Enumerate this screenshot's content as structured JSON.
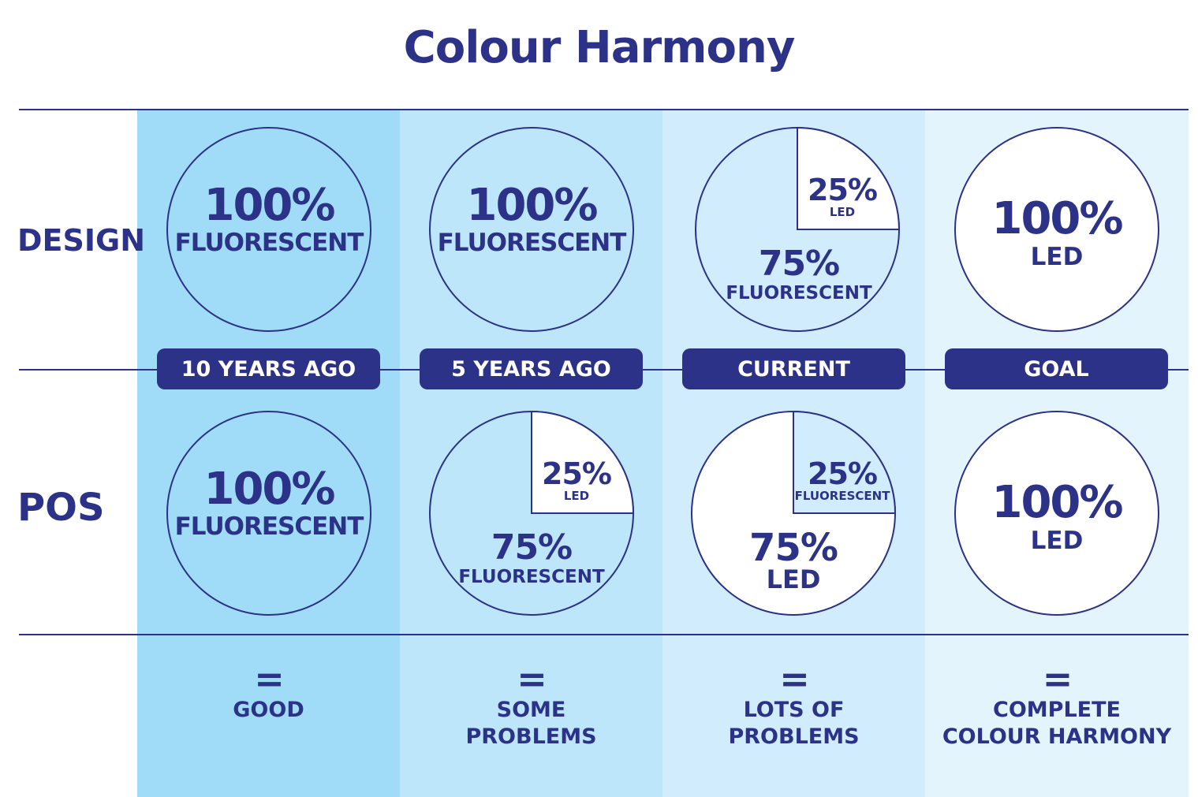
{
  "title": "Colour Harmony",
  "row_labels": {
    "design": "DESIGN",
    "pos": "POS"
  },
  "colors": {
    "dark_blue": "#2b3287",
    "column_1_bg": "#a0dcf7",
    "column_2_bg": "#bde6fa",
    "column_3_bg": "#d1ecfc",
    "column_4_bg": "#e4f4fd",
    "white": "#ffffff"
  },
  "columns": [
    {
      "label": "10 YEARS AGO",
      "design": {
        "pct": "100%",
        "name": "FLUORESCENT"
      },
      "pos": {
        "pct": "100%",
        "name": "FLUORESCENT"
      },
      "equals": "=",
      "result": [
        "GOOD"
      ]
    },
    {
      "label": "5 YEARS AGO",
      "design": {
        "pct": "100%",
        "name": "FLUORESCENT"
      },
      "pos": {
        "small_pct": "25%",
        "small_name": "LED",
        "large_pct": "75%",
        "large_name": "FLUORESCENT"
      },
      "equals": "=",
      "result": [
        "SOME",
        "PROBLEMS"
      ]
    },
    {
      "label": "CURRENT",
      "design": {
        "small_pct": "25%",
        "small_name": "LED",
        "large_pct": "75%",
        "large_name": "FLUORESCENT"
      },
      "pos": {
        "small_pct": "25%",
        "small_name": "FLUORESCENT",
        "large_pct": "75%",
        "large_name": "LED"
      },
      "equals": "=",
      "result": [
        "LOTS OF",
        "PROBLEMS"
      ]
    },
    {
      "label": "GOAL",
      "design": {
        "pct": "100%",
        "name": "LED"
      },
      "pos": {
        "pct": "100%",
        "name": "LED"
      },
      "equals": "=",
      "result": [
        "COMPLETE",
        "COLOUR HARMONY"
      ]
    }
  ]
}
